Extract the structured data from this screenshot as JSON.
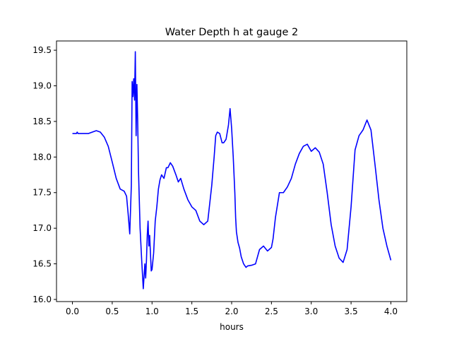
{
  "chart_data": {
    "type": "line",
    "title": "Water Depth h at gauge 2",
    "xlabel": "hours",
    "ylabel": "",
    "xlim": [
      -0.2,
      4.2
    ],
    "ylim": [
      15.97,
      19.63
    ],
    "xticks": [
      0.0,
      0.5,
      1.0,
      1.5,
      2.0,
      2.5,
      3.0,
      3.5,
      4.0
    ],
    "xtick_labels": [
      "0.0",
      "0.5",
      "1.0",
      "1.5",
      "2.0",
      "2.5",
      "3.0",
      "3.5",
      "4.0"
    ],
    "yticks": [
      16.0,
      16.5,
      17.0,
      17.5,
      18.0,
      18.5,
      19.0,
      19.5
    ],
    "ytick_labels": [
      "16.0",
      "16.5",
      "17.0",
      "17.5",
      "18.0",
      "18.5",
      "19.0",
      "19.5"
    ],
    "grid": false,
    "series_color": "#0000ff",
    "series": [
      {
        "x": [
          0.0,
          0.05,
          0.06,
          0.07,
          0.1,
          0.2,
          0.3,
          0.35,
          0.4,
          0.45,
          0.5,
          0.55,
          0.6,
          0.65,
          0.68,
          0.7,
          0.72,
          0.74,
          0.75,
          0.76,
          0.77,
          0.78,
          0.79,
          0.8,
          0.81,
          0.82,
          0.83,
          0.85,
          0.87,
          0.89,
          0.91,
          0.92,
          0.93,
          0.94,
          0.95,
          0.96,
          0.97,
          0.98,
          0.99,
          1.0,
          1.02,
          1.04,
          1.06,
          1.08,
          1.1,
          1.12,
          1.15,
          1.18,
          1.2,
          1.23,
          1.26,
          1.3,
          1.33,
          1.36,
          1.4,
          1.45,
          1.5,
          1.55,
          1.6,
          1.65,
          1.7,
          1.75,
          1.78,
          1.8,
          1.82,
          1.85,
          1.88,
          1.9,
          1.93,
          1.96,
          1.98,
          2.0,
          2.02,
          2.04,
          2.05,
          2.06,
          2.08,
          2.1,
          2.12,
          2.15,
          2.18,
          2.2,
          2.25,
          2.3,
          2.35,
          2.4,
          2.45,
          2.5,
          2.52,
          2.55,
          2.6,
          2.65,
          2.7,
          2.75,
          2.8,
          2.85,
          2.9,
          2.95,
          3.0,
          3.05,
          3.1,
          3.15,
          3.2,
          3.25,
          3.3,
          3.35,
          3.4,
          3.45,
          3.5,
          3.55,
          3.6,
          3.65,
          3.7,
          3.75,
          3.8,
          3.85,
          3.9,
          3.95,
          4.0
        ],
        "y": [
          18.33,
          18.33,
          18.35,
          18.33,
          18.33,
          18.33,
          18.37,
          18.35,
          18.28,
          18.15,
          17.93,
          17.7,
          17.55,
          17.52,
          17.45,
          17.2,
          16.92,
          17.6,
          19.06,
          18.85,
          19.1,
          18.8,
          19.48,
          18.3,
          19.02,
          18.5,
          17.8,
          17.0,
          16.55,
          16.15,
          16.5,
          16.3,
          16.55,
          16.9,
          17.1,
          16.75,
          16.9,
          16.65,
          16.4,
          16.42,
          16.65,
          17.1,
          17.3,
          17.55,
          17.68,
          17.75,
          17.7,
          17.85,
          17.85,
          17.92,
          17.87,
          17.75,
          17.65,
          17.7,
          17.55,
          17.4,
          17.3,
          17.25,
          17.1,
          17.05,
          17.1,
          17.6,
          18.0,
          18.3,
          18.35,
          18.33,
          18.2,
          18.2,
          18.25,
          18.45,
          18.68,
          18.4,
          18.0,
          17.5,
          17.15,
          16.95,
          16.8,
          16.72,
          16.6,
          16.5,
          16.45,
          16.47,
          16.48,
          16.5,
          16.7,
          16.75,
          16.68,
          16.73,
          16.85,
          17.15,
          17.5,
          17.5,
          17.58,
          17.7,
          17.9,
          18.05,
          18.15,
          18.18,
          18.08,
          18.13,
          18.07,
          17.9,
          17.5,
          17.05,
          16.75,
          16.58,
          16.52,
          16.7,
          17.3,
          18.1,
          18.3,
          18.38,
          18.52,
          18.38,
          17.9,
          17.4,
          17.0,
          16.75,
          16.55
        ]
      }
    ]
  }
}
